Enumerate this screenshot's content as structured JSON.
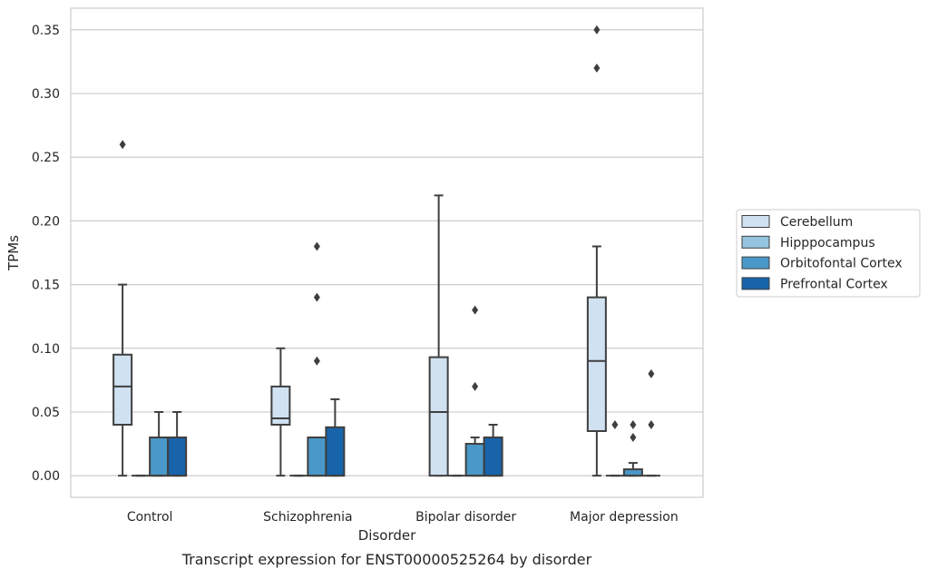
{
  "chart_data": {
    "type": "box",
    "caption": "Transcript expression for ENST00000525264 by disorder",
    "xlabel": "Disorder",
    "ylabel": "TPMs",
    "ylim": [
      -0.017,
      0.367
    ],
    "yticks": [
      0.0,
      0.05,
      0.1,
      0.15,
      0.2,
      0.25,
      0.3,
      0.35
    ],
    "ytick_labels": [
      "0.00",
      "0.05",
      "0.10",
      "0.15",
      "0.20",
      "0.25",
      "0.30",
      "0.35"
    ],
    "grid": true,
    "legend_placement": "center-right outside",
    "categories": [
      "Control",
      "Schizophrenia",
      "Bipolar disorder",
      "Major depression"
    ],
    "series": [
      {
        "name": "Cerebellum",
        "color": "#d0e1f2",
        "boxes": [
          {
            "q1": 0.04,
            "median": 0.07,
            "q3": 0.095,
            "whislo": 0.0,
            "whishi": 0.15,
            "fliers": [
              0.26
            ]
          },
          {
            "q1": 0.04,
            "median": 0.045,
            "q3": 0.07,
            "whislo": 0.0,
            "whishi": 0.1,
            "fliers": []
          },
          {
            "q1": 0.0,
            "median": 0.05,
            "q3": 0.093,
            "whislo": 0.0,
            "whishi": 0.22,
            "fliers": []
          },
          {
            "q1": 0.035,
            "median": 0.09,
            "q3": 0.14,
            "whislo": 0.0,
            "whishi": 0.18,
            "fliers": [
              0.32,
              0.35
            ]
          }
        ]
      },
      {
        "name": "Hipppocampus",
        "color": "#94c4df",
        "boxes": [
          {
            "q1": 0.0,
            "median": 0.0,
            "q3": 0.0,
            "whislo": 0.0,
            "whishi": 0.0,
            "fliers": []
          },
          {
            "q1": 0.0,
            "median": 0.0,
            "q3": 0.0,
            "whislo": 0.0,
            "whishi": 0.0,
            "fliers": []
          },
          {
            "q1": 0.0,
            "median": 0.0,
            "q3": 0.0,
            "whislo": 0.0,
            "whishi": 0.0,
            "fliers": []
          },
          {
            "q1": 0.0,
            "median": 0.0,
            "q3": 0.0,
            "whislo": 0.0,
            "whishi": 0.0,
            "fliers": [
              0.04
            ]
          }
        ]
      },
      {
        "name": "Orbitofontal Cortex",
        "color": "#4a98c9",
        "boxes": [
          {
            "q1": 0.0,
            "median": 0.0,
            "q3": 0.03,
            "whislo": 0.0,
            "whishi": 0.05,
            "fliers": []
          },
          {
            "q1": 0.0,
            "median": 0.0,
            "q3": 0.03,
            "whislo": 0.0,
            "whishi": 0.03,
            "fliers": [
              0.09,
              0.14,
              0.18
            ]
          },
          {
            "q1": 0.0,
            "median": 0.0,
            "q3": 0.025,
            "whislo": 0.0,
            "whishi": 0.03,
            "fliers": [
              0.07,
              0.13
            ]
          },
          {
            "q1": 0.0,
            "median": 0.0,
            "q3": 0.005,
            "whislo": 0.0,
            "whishi": 0.01,
            "fliers": [
              0.03,
              0.04
            ]
          }
        ]
      },
      {
        "name": "Prefrontal Cortex",
        "color": "#1764ab",
        "boxes": [
          {
            "q1": 0.0,
            "median": 0.0,
            "q3": 0.03,
            "whislo": 0.0,
            "whishi": 0.05,
            "fliers": []
          },
          {
            "q1": 0.0,
            "median": 0.0,
            "q3": 0.038,
            "whislo": 0.0,
            "whishi": 0.06,
            "fliers": []
          },
          {
            "q1": 0.0,
            "median": 0.0,
            "q3": 0.03,
            "whislo": 0.0,
            "whishi": 0.04,
            "fliers": []
          },
          {
            "q1": 0.0,
            "median": 0.0,
            "q3": 0.0,
            "whislo": 0.0,
            "whishi": 0.0,
            "fliers": [
              0.04,
              0.08
            ]
          }
        ]
      }
    ]
  }
}
